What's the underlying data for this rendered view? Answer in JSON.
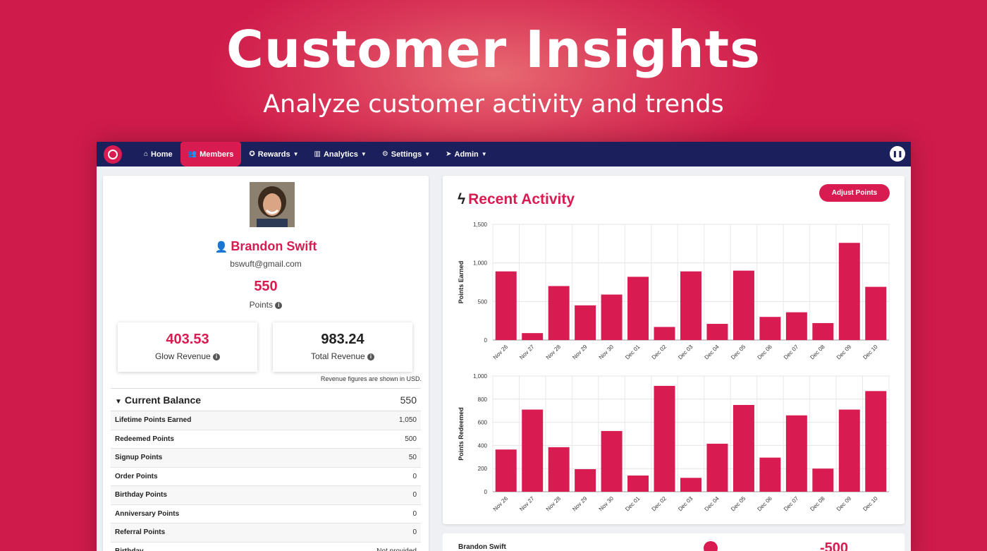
{
  "hero": {
    "title": "Customer Insights",
    "subtitle": "Analyze customer activity and trends"
  },
  "nav": {
    "items": [
      {
        "icon": "home-icon",
        "glyph": "⌂",
        "label": "Home",
        "caret": false,
        "active": false
      },
      {
        "icon": "users-icon",
        "glyph": "👥",
        "label": "Members",
        "caret": false,
        "active": true
      },
      {
        "icon": "gift-icon",
        "glyph": "✪",
        "label": "Rewards",
        "caret": true,
        "active": false
      },
      {
        "icon": "bar-chart-icon",
        "glyph": "▥",
        "label": "Analytics",
        "caret": true,
        "active": false
      },
      {
        "icon": "cogs-icon",
        "glyph": "⚙",
        "label": "Settings",
        "caret": true,
        "active": false
      },
      {
        "icon": "rocket-icon",
        "glyph": "➤",
        "label": "Admin",
        "caret": true,
        "active": false
      }
    ],
    "pause_glyph": "❚❚"
  },
  "member": {
    "name": "Brandon Swift",
    "email": "bswuft@gmail.com",
    "points": "550",
    "points_label": "Points"
  },
  "revenue": {
    "glow_value": "403.53",
    "glow_label": "Glow Revenue",
    "total_value": "983.24",
    "total_label": "Total Revenue",
    "note": "Revenue figures are shown in USD."
  },
  "balance": {
    "title": "Current Balance",
    "value": "550",
    "rows": [
      {
        "label": "Lifetime Points Earned",
        "value": "1,050"
      },
      {
        "label": "Redeemed Points",
        "value": "500"
      },
      {
        "label": "Signup Points",
        "value": "50"
      },
      {
        "label": "Order Points",
        "value": "0"
      },
      {
        "label": "Birthday Points",
        "value": "0"
      },
      {
        "label": "Anniversary Points",
        "value": "0"
      },
      {
        "label": "Referral Points",
        "value": "0"
      },
      {
        "label": "Birthday",
        "value": "Not provided"
      }
    ]
  },
  "activity": {
    "title": "Recent Activity",
    "adjust_label": "Adjust Points"
  },
  "chart_data": [
    {
      "type": "bar",
      "ylabel": "Points Earned",
      "categories": [
        "Nov 26",
        "Nov 27",
        "Nov 28",
        "Nov 29",
        "Nov 30",
        "Dec 01",
        "Dec 02",
        "Dec 03",
        "Dec 04",
        "Dec 05",
        "Dec 06",
        "Dec 07",
        "Dec 08",
        "Dec 09",
        "Dec 10"
      ],
      "values": [
        890,
        90,
        700,
        450,
        590,
        820,
        170,
        890,
        210,
        900,
        300,
        360,
        220,
        1260,
        690
      ],
      "ylim": [
        0,
        1500
      ],
      "yticks": [
        0,
        500,
        1000,
        1500
      ],
      "ytick_labels": [
        "0",
        "500",
        "1,000",
        "1,500"
      ],
      "color": "#d81b50",
      "grid": true
    },
    {
      "type": "bar",
      "ylabel": "Points Redeemed",
      "categories": [
        "Nov 26",
        "Nov 27",
        "Nov 28",
        "Nov 29",
        "Nov 30",
        "Dec 01",
        "Dec 02",
        "Dec 03",
        "Dec 04",
        "Dec 05",
        "Dec 06",
        "Dec 07",
        "Dec 08",
        "Dec 09",
        "Dec 10"
      ],
      "values": [
        365,
        710,
        385,
        195,
        525,
        140,
        915,
        120,
        415,
        750,
        295,
        660,
        200,
        710,
        870
      ],
      "ylim": [
        0,
        1000
      ],
      "yticks": [
        0,
        200,
        400,
        600,
        800,
        1000
      ],
      "ytick_labels": [
        "0",
        "200",
        "400",
        "600",
        "800",
        "1,000"
      ],
      "color": "#d81b50",
      "grid": true
    }
  ],
  "bottom": {
    "name": "Brandon Swift",
    "value": "-500"
  }
}
